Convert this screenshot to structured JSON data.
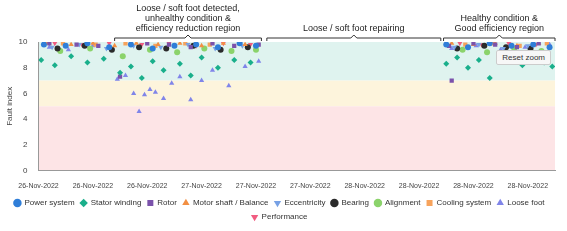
{
  "chart_data": {
    "type": "scatter",
    "y_label": "Fault index",
    "xlim": [
      0,
      9.5
    ],
    "xticks": [
      {
        "value": 0,
        "label": "26-Nov-2022"
      },
      {
        "value": 1,
        "label": "26-Nov-2022"
      },
      {
        "value": 2,
        "label": "26-Nov-2022"
      },
      {
        "value": 3,
        "label": "27-Nov-2022"
      },
      {
        "value": 4,
        "label": "27-Nov-2022"
      },
      {
        "value": 5,
        "label": "27-Nov-2022"
      },
      {
        "value": 6,
        "label": "28-Nov-2022"
      },
      {
        "value": 7,
        "label": "28-Nov-2022"
      },
      {
        "value": 8,
        "label": "28-Nov-2022"
      },
      {
        "value": 9,
        "label": "28-Nov-2022"
      }
    ],
    "ylim": [
      0,
      10
    ],
    "yticks": [
      0,
      2,
      4,
      6,
      8,
      10
    ],
    "grid": false,
    "legend": "bottom",
    "button": "Reset zoom",
    "bands": [
      {
        "from": 7,
        "to": 10,
        "color": "#dff3ef"
      },
      {
        "from": 5,
        "to": 7,
        "color": "#fdf4dc"
      },
      {
        "from": 0,
        "to": 5,
        "color": "#fde4e6"
      }
    ],
    "annotations": [
      {
        "text": [
          "Loose / soft foot detected,",
          "unhealthy condition &",
          "efficiency reduction region"
        ],
        "x": [
          1.4,
          4.1
        ]
      },
      {
        "text": [
          "Loose / soft foot repairing"
        ],
        "x": [
          4.2,
          7.4
        ]
      },
      {
        "text": [
          "Healthy condition &",
          "Good efficiency region"
        ],
        "x": [
          7.45,
          9.5
        ]
      }
    ],
    "series": [
      {
        "name": "Power system",
        "color": "#2f7ed8",
        "marker": "circle",
        "x": [
          0.1,
          0.5,
          0.9,
          1.3,
          1.7,
          2.1,
          2.5,
          2.9,
          3.3,
          3.7,
          4.0,
          7.5,
          7.9,
          8.3,
          8.7,
          9.1,
          9.4
        ],
        "values": [
          9.8,
          9.7,
          9.9,
          9.6,
          9.8,
          9.5,
          9.7,
          9.8,
          9.6,
          9.9,
          9.7,
          9.8,
          9.6,
          9.9,
          9.7,
          9.8,
          9.6
        ]
      },
      {
        "name": "Stator winding",
        "color": "#1aaf8b",
        "marker": "diamond",
        "x": [
          0.05,
          0.3,
          0.6,
          0.9,
          1.2,
          1.5,
          1.7,
          1.9,
          2.1,
          2.3,
          2.6,
          2.8,
          3.0,
          3.3,
          3.6,
          3.9,
          7.5,
          7.7,
          7.9,
          8.1,
          8.3,
          8.5,
          8.7,
          8.9,
          9.1,
          9.3,
          9.45
        ],
        "values": [
          8.6,
          8.2,
          8.9,
          8.4,
          8.7,
          7.6,
          8.1,
          7.2,
          8.5,
          7.8,
          8.3,
          7.4,
          8.8,
          8.0,
          8.6,
          8.4,
          8.3,
          8.8,
          8.0,
          8.6,
          7.2,
          8.5,
          8.9,
          8.2,
          8.7,
          8.4,
          8.1
        ]
      },
      {
        "name": "Rotor",
        "color": "#7b52ab",
        "marker": "square",
        "x": [
          0.2,
          0.7,
          1.1,
          1.5,
          2.0,
          2.4,
          2.8,
          3.2,
          3.6,
          4.05,
          7.55,
          7.6,
          8.0,
          8.4,
          8.8,
          9.2
        ],
        "values": [
          9.9,
          9.8,
          9.7,
          7.3,
          9.9,
          9.8,
          9.6,
          9.9,
          9.7,
          9.8,
          9.7,
          7.0,
          9.9,
          9.8,
          9.6,
          9.9
        ]
      },
      {
        "name": "Motor shaft / Balance",
        "color": "#f28f43",
        "marker": "triangle-up",
        "x": [
          0.15,
          0.6,
          1.0,
          1.4,
          1.8,
          2.2,
          2.6,
          3.0,
          3.4,
          3.8,
          7.6,
          8.0,
          8.4,
          8.8,
          9.2
        ],
        "values": [
          9.9,
          9.8,
          9.9,
          9.7,
          9.9,
          9.8,
          9.9,
          9.7,
          9.9,
          9.8,
          9.9,
          9.8,
          9.9,
          9.7,
          9.9
        ]
      },
      {
        "name": "Eccentricity",
        "color": "#77a1e5",
        "marker": "triangle-down",
        "x": [
          0.25,
          0.75,
          1.25,
          1.75,
          2.25,
          2.75,
          3.25,
          3.75,
          7.65,
          8.1,
          8.55,
          9.0,
          9.4
        ],
        "values": [
          9.6,
          9.8,
          9.5,
          9.7,
          9.6,
          9.8,
          9.5,
          9.7,
          9.6,
          9.8,
          9.5,
          9.7,
          9.6
        ]
      },
      {
        "name": "Bearing",
        "color": "#2b2b2b",
        "marker": "circle",
        "x": [
          0.35,
          0.85,
          1.35,
          1.85,
          2.35,
          2.85,
          3.35,
          3.85,
          7.7,
          8.2,
          8.6,
          9.05
        ],
        "values": [
          9.5,
          9.7,
          9.4,
          9.6,
          9.5,
          9.7,
          9.4,
          9.6,
          9.5,
          9.7,
          9.6,
          9.5
        ]
      },
      {
        "name": "Alignment",
        "color": "#8bd36b",
        "marker": "circle",
        "x": [
          0.4,
          0.95,
          1.55,
          2.05,
          2.55,
          3.05,
          3.55,
          4.0,
          7.8,
          8.25,
          8.75,
          9.25
        ],
        "values": [
          9.3,
          9.5,
          8.9,
          9.4,
          9.2,
          9.5,
          9.3,
          9.4,
          9.4,
          9.2,
          9.5,
          9.3
        ]
      },
      {
        "name": "Cooling system",
        "color": "#f7a35c",
        "marker": "square",
        "x": [
          0.45,
          1.05,
          1.6,
          2.15,
          2.7,
          3.15,
          3.7,
          7.85,
          8.35,
          8.85,
          9.35
        ],
        "values": [
          9.9,
          9.8,
          9.9,
          9.7,
          9.9,
          9.8,
          9.9,
          9.8,
          9.9,
          9.7,
          9.9
        ]
      },
      {
        "name": "Loose foot",
        "color": "#8085e9",
        "marker": "triangle-up",
        "x": [
          0.2,
          0.55,
          1.0,
          1.45,
          1.6,
          1.75,
          1.85,
          1.95,
          2.05,
          2.15,
          2.3,
          2.45,
          2.6,
          2.8,
          3.0,
          3.2,
          3.5,
          3.8,
          4.05,
          7.6,
          8.05,
          8.5,
          8.95,
          9.4
        ],
        "values": [
          9.6,
          9.4,
          9.7,
          7.1,
          7.4,
          6.0,
          4.6,
          5.9,
          6.3,
          6.1,
          5.6,
          6.8,
          7.3,
          5.5,
          7.0,
          7.8,
          6.6,
          8.1,
          8.5,
          9.5,
          9.7,
          9.4,
          9.6,
          9.8
        ]
      },
      {
        "name": "Performance",
        "color": "#f15c80",
        "marker": "triangle-down",
        "x": [
          0.3,
          0.8,
          1.3,
          1.9,
          2.4,
          2.9,
          3.4,
          3.9,
          7.75,
          8.15,
          8.65,
          9.15
        ],
        "values": [
          9.9,
          9.8,
          9.9,
          9.8,
          9.9,
          9.7,
          9.9,
          9.8,
          9.9,
          9.8,
          9.9,
          9.8
        ]
      }
    ]
  }
}
